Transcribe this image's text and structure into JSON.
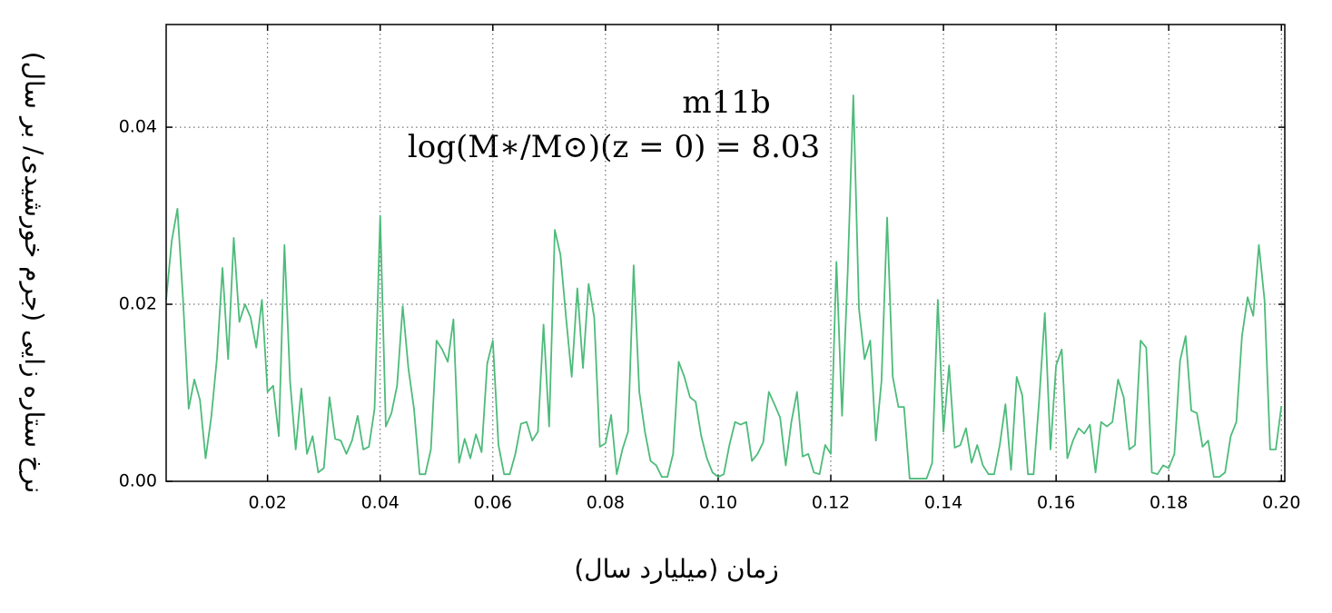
{
  "chart_data": {
    "type": "line",
    "x_label": "زمان (میلیارد سال)",
    "y_label": "نرخ ستاره زایی (جرم خورشیدی/ بر سال)",
    "annotations": [
      "m11b",
      "log(M∗/M⊙)(z = 0) = 8.03"
    ],
    "color": "#4dbb7a",
    "grid": true,
    "xlim": [
      0.002,
      0.2006
    ],
    "ylim": [
      0,
      0.0516
    ],
    "xticks": [
      0.02,
      0.04,
      0.06,
      0.08,
      {
        "value": 0.1,
        "label": "0.10"
      },
      0.12,
      0.14,
      0.16,
      0.18,
      {
        "value": 0.2,
        "label": "0.20"
      }
    ],
    "yticks": [
      {
        "value": 0,
        "label": "0.00"
      },
      0.02,
      0.04
    ],
    "x": [
      0.002,
      0.003,
      0.004,
      0.005,
      0.006,
      0.007,
      0.008,
      0.009,
      0.01,
      0.011,
      0.012,
      0.013,
      0.014,
      0.015,
      0.016,
      0.017,
      0.018,
      0.019,
      0.02,
      0.021,
      0.022,
      0.023,
      0.024,
      0.025,
      0.026,
      0.027,
      0.028,
      0.029,
      0.03,
      0.031,
      0.032,
      0.033,
      0.034,
      0.035,
      0.036,
      0.037,
      0.038,
      0.039,
      0.04,
      0.041,
      0.042,
      0.043,
      0.044,
      0.045,
      0.046,
      0.047,
      0.048,
      0.049,
      0.05,
      0.051,
      0.052,
      0.053,
      0.054,
      0.055,
      0.056,
      0.057,
      0.058,
      0.059,
      0.06,
      0.061,
      0.062,
      0.063,
      0.064,
      0.065,
      0.066,
      0.067,
      0.068,
      0.069,
      0.07,
      0.071,
      0.072,
      0.073,
      0.074,
      0.075,
      0.076,
      0.077,
      0.078,
      0.079,
      0.08,
      0.081,
      0.082,
      0.083,
      0.084,
      0.085,
      0.086,
      0.087,
      0.088,
      0.089,
      0.09,
      0.091,
      0.092,
      0.093,
      0.094,
      0.095,
      0.096,
      0.097,
      0.098,
      0.099,
      0.1,
      0.101,
      0.102,
      0.103,
      0.104,
      0.105,
      0.106,
      0.107,
      0.108,
      0.109,
      0.11,
      0.111,
      0.112,
      0.113,
      0.114,
      0.115,
      0.116,
      0.117,
      0.118,
      0.119,
      0.12,
      0.121,
      0.122,
      0.123,
      0.124,
      0.125,
      0.126,
      0.127,
      0.128,
      0.129,
      0.13,
      0.131,
      0.132,
      0.133,
      0.134,
      0.135,
      0.136,
      0.137,
      0.138,
      0.139,
      0.14,
      0.141,
      0.142,
      0.143,
      0.144,
      0.145,
      0.146,
      0.147,
      0.148,
      0.149,
      0.15,
      0.151,
      0.152,
      0.153,
      0.154,
      0.155,
      0.156,
      0.157,
      0.158,
      0.159,
      0.16,
      0.161,
      0.162,
      0.163,
      0.164,
      0.165,
      0.166,
      0.167,
      0.168,
      0.169,
      0.17,
      0.171,
      0.172,
      0.173,
      0.174,
      0.175,
      0.176,
      0.177,
      0.178,
      0.179,
      0.18,
      0.181,
      0.182,
      0.183,
      0.184,
      0.185,
      0.186,
      0.187,
      0.188,
      0.189,
      0.19,
      0.191,
      0.192,
      0.193,
      0.194,
      0.195,
      0.196,
      0.197,
      0.198,
      0.199,
      0.2
    ],
    "values": [
      0.0205,
      0.0272,
      0.0308,
      0.0205,
      0.0082,
      0.0115,
      0.0092,
      0.0026,
      0.0072,
      0.0138,
      0.0241,
      0.0138,
      0.0275,
      0.018,
      0.02,
      0.0185,
      0.0151,
      0.0205,
      0.0101,
      0.0108,
      0.0051,
      0.0267,
      0.0113,
      0.0036,
      0.0105,
      0.0031,
      0.0051,
      0.001,
      0.0015,
      0.0095,
      0.0048,
      0.0046,
      0.0031,
      0.0046,
      0.0074,
      0.0036,
      0.0039,
      0.0082,
      0.03,
      0.0062,
      0.0077,
      0.0108,
      0.0198,
      0.0128,
      0.0082,
      0.0008,
      0.0008,
      0.0036,
      0.0159,
      0.0149,
      0.0135,
      0.0183,
      0.0021,
      0.0048,
      0.0026,
      0.0053,
      0.0033,
      0.0133,
      0.0159,
      0.0041,
      0.0008,
      0.0008,
      0.0031,
      0.0065,
      0.0067,
      0.0046,
      0.0056,
      0.0177,
      0.0062,
      0.0284,
      0.0256,
      0.0185,
      0.0118,
      0.0218,
      0.0128,
      0.0223,
      0.0185,
      0.0039,
      0.0043,
      0.0075,
      0.0008,
      0.0036,
      0.0056,
      0.0244,
      0.0101,
      0.0056,
      0.0023,
      0.0018,
      0.0005,
      0.0005,
      0.0031,
      0.0135,
      0.0118,
      0.0095,
      0.009,
      0.0051,
      0.0026,
      0.001,
      0.0005,
      0.0008,
      0.0041,
      0.0067,
      0.0064,
      0.0067,
      0.0023,
      0.0031,
      0.0044,
      0.0101,
      0.0087,
      0.0072,
      0.0018,
      0.0067,
      0.0101,
      0.0028,
      0.0031,
      0.001,
      0.0008,
      0.0041,
      0.0031,
      0.0248,
      0.0074,
      0.0236,
      0.0436,
      0.0195,
      0.0138,
      0.0159,
      0.0046,
      0.0113,
      0.0298,
      0.0118,
      0.0084,
      0.0084,
      0.0003,
      0.0003,
      0.0003,
      0.0003,
      0.0021,
      0.0205,
      0.0056,
      0.0131,
      0.0038,
      0.0041,
      0.006,
      0.0021,
      0.0041,
      0.0018,
      0.0008,
      0.0008,
      0.0041,
      0.0087,
      0.0013,
      0.0118,
      0.0097,
      0.0008,
      0.0008,
      0.0092,
      0.019,
      0.0036,
      0.0131,
      0.0149,
      0.0026,
      0.0046,
      0.006,
      0.0054,
      0.0064,
      0.001,
      0.0067,
      0.0062,
      0.0067,
      0.0115,
      0.0095,
      0.0036,
      0.0041,
      0.0159,
      0.0151,
      0.001,
      0.0008,
      0.0018,
      0.0015,
      0.0031,
      0.0136,
      0.0164,
      0.008,
      0.0077,
      0.0039,
      0.0046,
      0.0005,
      0.0005,
      0.001,
      0.0051,
      0.0067,
      0.0164,
      0.0208,
      0.0187,
      0.0267,
      0.0205,
      0.0036,
      0.0036,
      0.0085
    ]
  }
}
